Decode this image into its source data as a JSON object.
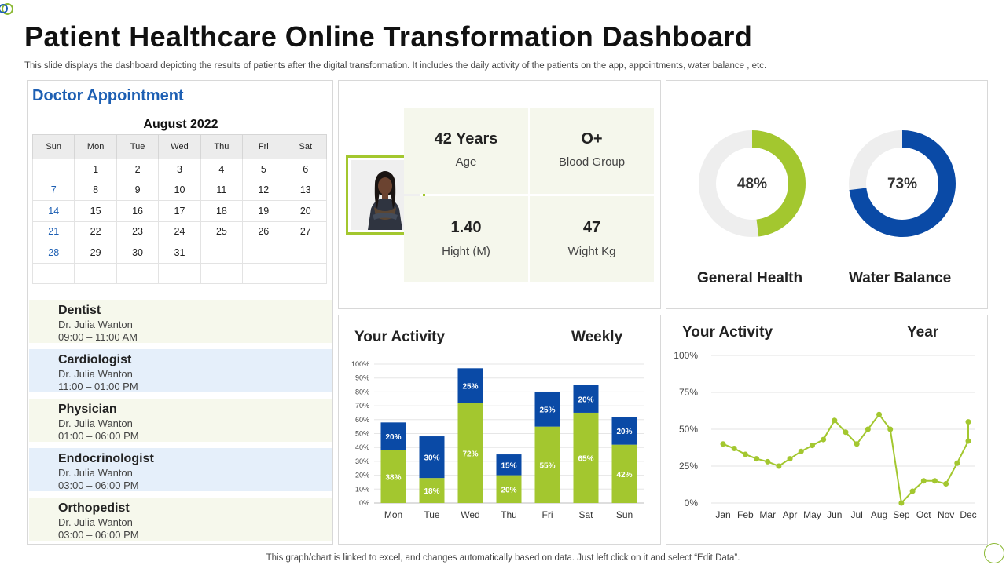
{
  "page": {
    "title": "Patient Healthcare Online Transformation Dashboard",
    "subtitle": "This slide displays the dashboard depicting the  results of patients after the  digital transformation. It includes the  daily activity  of the patients on the app, appointments, water balance , etc.",
    "footer": "This graph/chart is linked to excel,  and changes automatically based on data. Just left click on it and select “Edit Data”."
  },
  "appointment": {
    "title": "Doctor Appointment",
    "month": "August 2022",
    "weekdays": [
      "Sun",
      "Mon",
      "Tue",
      "Wed",
      "Thu",
      "Fri",
      "Sat"
    ],
    "weeks": [
      [
        "",
        "1",
        "2",
        "3",
        "4",
        "5",
        "6"
      ],
      [
        "7",
        "8",
        "9",
        "10",
        "11",
        "12",
        "13"
      ],
      [
        "14",
        "15",
        "16",
        "17",
        "18",
        "19",
        "20"
      ],
      [
        "21",
        "22",
        "23",
        "24",
        "25",
        "26",
        "27"
      ],
      [
        "28",
        "29",
        "30",
        "31",
        "",
        "",
        ""
      ],
      [
        "",
        "",
        "",
        "",
        "",
        "",
        ""
      ]
    ],
    "items": [
      {
        "specialty": "Dentist",
        "doctor": "Dr. Julia Wanton",
        "time": "09:00 – 11:00 AM"
      },
      {
        "specialty": "Cardiologist",
        "doctor": "Dr. Julia Wanton",
        "time": "11:00 – 01:00 PM"
      },
      {
        "specialty": "Physician",
        "doctor": "Dr. Julia Wanton",
        "time": "01:00 – 06:00 PM"
      },
      {
        "specialty": "Endocrinologist",
        "doctor": "Dr. Julia Wanton",
        "time": "03:00 – 06:00 PM"
      },
      {
        "specialty": "Orthopedist",
        "doctor": "Dr. Julia Wanton",
        "time": "03:00 – 06:00 PM"
      }
    ]
  },
  "profile": {
    "age_value": "42 Years",
    "age_label": "Age",
    "blood_value": "O+",
    "blood_label": "Blood Group",
    "height_value": "1.40",
    "height_label": "Hight (M)",
    "weight_value": "47",
    "weight_label": "Wight Kg"
  },
  "colors": {
    "green": "#a3c72f",
    "blue": "#0a4aa6",
    "track": "#eeeeee",
    "line": "#a3c72f"
  },
  "chart_data": [
    {
      "type": "pie",
      "variant": "donut",
      "title": "General Health",
      "value": 48,
      "value_label": "48%"
    },
    {
      "type": "pie",
      "variant": "donut",
      "title": "Water Balance",
      "value": 73,
      "value_label": "73%"
    },
    {
      "type": "bar",
      "stacked": true,
      "title": "Your Activity",
      "period": "Weekly",
      "categories": [
        "Mon",
        "Tue",
        "Wed",
        "Thu",
        "Fri",
        "Sat",
        "Sun"
      ],
      "series": [
        {
          "values": [
            38,
            18,
            72,
            20,
            55,
            65,
            42
          ],
          "labels": [
            "38%",
            "18%",
            "72%",
            "20%",
            "55%",
            "65%",
            "42%"
          ]
        },
        {
          "values": [
            20,
            30,
            25,
            15,
            25,
            20,
            20
          ],
          "labels": [
            "20%",
            "30%",
            "25%",
            "15%",
            "25%",
            "20%",
            "20%"
          ]
        }
      ],
      "yticks": [
        "0%",
        "10%",
        "20%",
        "30%",
        "40%",
        "50%",
        "60%",
        "70%",
        "80%",
        "90%",
        "100%"
      ],
      "ylim": [
        0,
        100
      ]
    },
    {
      "type": "line",
      "title": "Your Activity",
      "period": "Year",
      "categories": [
        "Jan",
        "Feb",
        "Mar",
        "Apr",
        "May",
        "Jun",
        "Jul",
        "Aug",
        "Sep",
        "Oct",
        "Nov",
        "Dec"
      ],
      "x": [
        1.0,
        1.5,
        2.0,
        2.5,
        3.0,
        3.5,
        4.0,
        4.5,
        5.0,
        5.5,
        6.0,
        6.5,
        7.0,
        7.5,
        8.0,
        8.5,
        9.0,
        9.5,
        10.0,
        10.5,
        11.0,
        11.5,
        12.0
      ],
      "values": [
        40,
        37,
        33,
        30,
        28,
        25,
        30,
        35,
        39,
        43,
        56,
        48,
        40,
        50,
        60,
        50,
        0,
        8,
        15,
        15,
        13,
        27,
        42
      ],
      "tail_x": 12.0,
      "tail_value": 55,
      "yticks": [
        "0%",
        "25%",
        "50%",
        "75%",
        "100%"
      ],
      "ylim": [
        0,
        100
      ]
    }
  ]
}
